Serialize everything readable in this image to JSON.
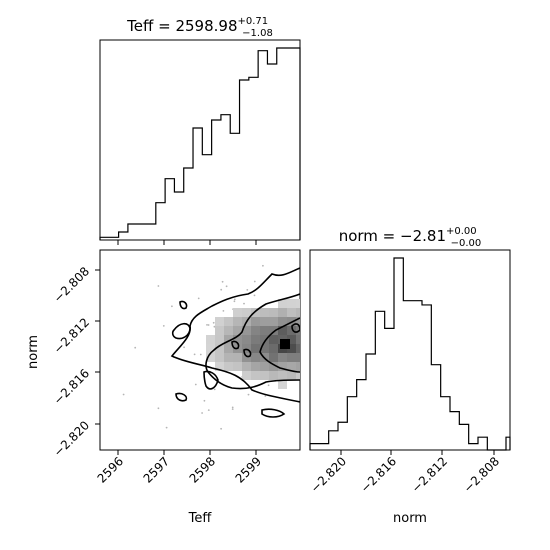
{
  "chart_data": [
    {
      "type": "histogram",
      "panel": "top-left",
      "title_name": "Teff",
      "title_value": "2598.98",
      "title_plus": "+0.71",
      "title_minus": "−1.08",
      "xlim": [
        2595.6,
        2599.9
      ],
      "bins_x": [
        2595.6,
        2595.8,
        2596.0,
        2596.2,
        2596.4,
        2596.6,
        2596.8,
        2597.0,
        2597.2,
        2597.4,
        2597.6,
        2597.8,
        2598.0,
        2598.2,
        2598.4,
        2598.6,
        2598.8,
        2599.0,
        2599.2,
        2599.4,
        2599.6,
        2599.8,
        2599.9
      ],
      "counts": [
        1,
        1,
        3,
        6,
        6,
        6,
        14,
        23,
        18,
        27,
        42,
        32,
        45,
        47,
        40,
        60,
        61,
        71,
        66,
        72,
        72,
        72
      ]
    },
    {
      "type": "heatmap",
      "panel": "bottom-left",
      "xlabel": "Teff",
      "ylabel": "norm",
      "xlim": [
        2595.6,
        2599.9
      ],
      "ylim": [
        -2.8218,
        -2.8068
      ],
      "xticks": [
        "2596",
        "2597",
        "2598",
        "2599"
      ],
      "yticks": [
        "−2.808",
        "−2.812",
        "−2.816",
        "−2.820"
      ],
      "peak": [
        2599.5,
        -2.8138
      ],
      "contour_levels": [
        "outer",
        "middle",
        "inner"
      ]
    },
    {
      "type": "histogram",
      "panel": "bottom-right",
      "title_name": "norm",
      "title_value": "−2.81",
      "title_plus": "+0.00",
      "title_minus": "−0.00",
      "xlabel": "norm",
      "xlim": [
        -2.8218,
        -2.8068
      ],
      "xticks": [
        "−2.820",
        "−2.816",
        "−2.812",
        "−2.808"
      ],
      "bins_x": [
        -2.8218,
        -2.8211,
        -2.8204,
        -2.8197,
        -2.819,
        -2.8183,
        -2.8176,
        -2.8169,
        -2.8162,
        -2.8155,
        -2.8148,
        -2.8141,
        -2.8134,
        -2.8127,
        -2.812,
        -2.8113,
        -2.8106,
        -2.8099,
        -2.8092,
        -2.8085,
        -2.8078,
        -2.8071,
        -2.8068
      ],
      "counts": [
        3,
        3,
        9,
        13,
        25,
        33,
        45,
        65,
        57,
        90,
        70,
        70,
        68,
        40,
        25,
        18,
        12,
        3,
        6,
        0,
        0,
        6
      ]
    }
  ]
}
